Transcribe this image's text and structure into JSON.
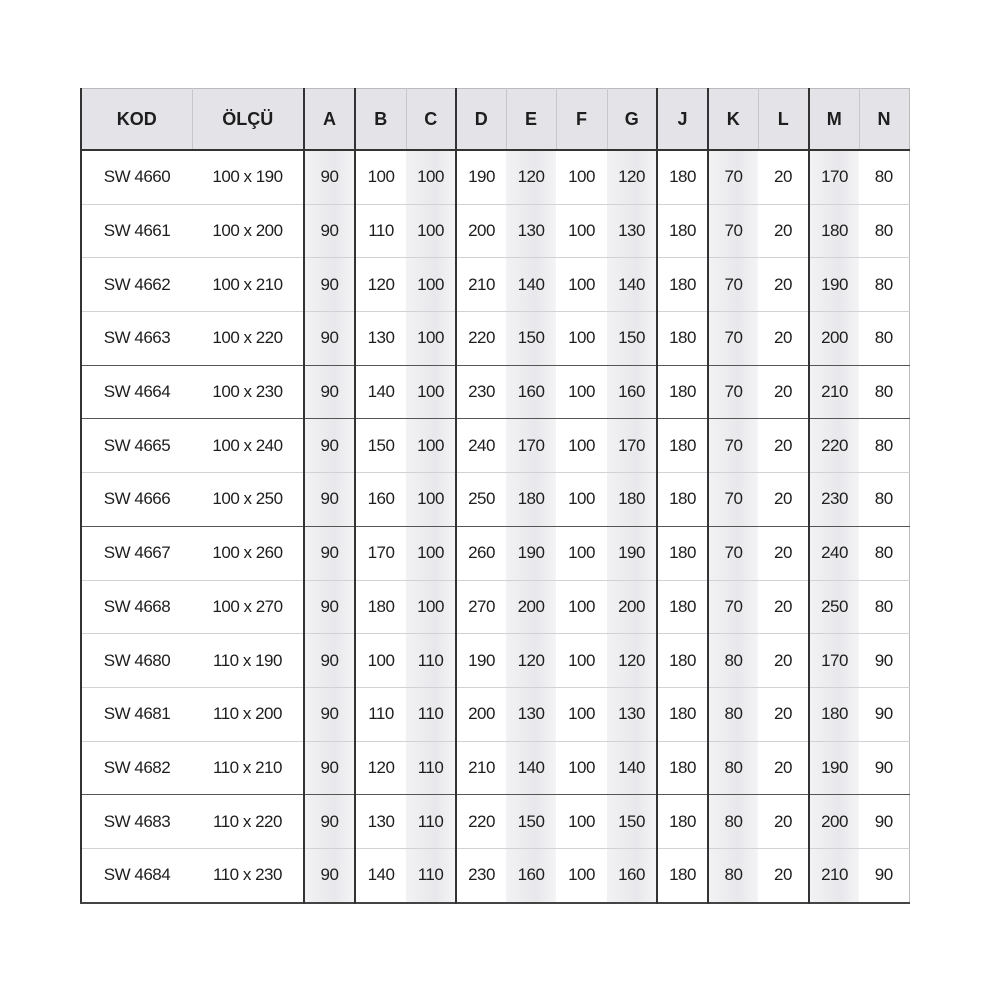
{
  "table": {
    "headers": [
      "KOD",
      "ÖLÇÜ",
      "A",
      "B",
      "C",
      "D",
      "E",
      "F",
      "G",
      "J",
      "K",
      "L",
      "M",
      "N"
    ],
    "rows": [
      [
        "SW 4660",
        "100 x 190",
        "90",
        "100",
        "100",
        "190",
        "120",
        "100",
        "120",
        "180",
        "70",
        "20",
        "170",
        "80"
      ],
      [
        "SW 4661",
        "100 x 200",
        "90",
        "110",
        "100",
        "200",
        "130",
        "100",
        "130",
        "180",
        "70",
        "20",
        "180",
        "80"
      ],
      [
        "SW 4662",
        "100 x 210",
        "90",
        "120",
        "100",
        "210",
        "140",
        "100",
        "140",
        "180",
        "70",
        "20",
        "190",
        "80"
      ],
      [
        "SW 4663",
        "100 x 220",
        "90",
        "130",
        "100",
        "220",
        "150",
        "100",
        "150",
        "180",
        "70",
        "20",
        "200",
        "80"
      ],
      [
        "SW 4664",
        "100 x 230",
        "90",
        "140",
        "100",
        "230",
        "160",
        "100",
        "160",
        "180",
        "70",
        "20",
        "210",
        "80"
      ],
      [
        "SW 4665",
        "100 x 240",
        "90",
        "150",
        "100",
        "240",
        "170",
        "100",
        "170",
        "180",
        "70",
        "20",
        "220",
        "80"
      ],
      [
        "SW 4666",
        "100 x 250",
        "90",
        "160",
        "100",
        "250",
        "180",
        "100",
        "180",
        "180",
        "70",
        "20",
        "230",
        "80"
      ],
      [
        "SW 4667",
        "100 x 260",
        "90",
        "170",
        "100",
        "260",
        "190",
        "100",
        "190",
        "180",
        "70",
        "20",
        "240",
        "80"
      ],
      [
        "SW 4668",
        "100 x 270",
        "90",
        "180",
        "100",
        "270",
        "200",
        "100",
        "200",
        "180",
        "70",
        "20",
        "250",
        "80"
      ],
      [
        "SW 4680",
        "110 x 190",
        "90",
        "100",
        "110",
        "190",
        "120",
        "100",
        "120",
        "180",
        "80",
        "20",
        "170",
        "90"
      ],
      [
        "SW 4681",
        "110 x 200",
        "90",
        "110",
        "110",
        "200",
        "130",
        "100",
        "130",
        "180",
        "80",
        "20",
        "180",
        "90"
      ],
      [
        "SW 4682",
        "110 x 210",
        "90",
        "120",
        "110",
        "210",
        "140",
        "100",
        "140",
        "180",
        "80",
        "20",
        "190",
        "90"
      ],
      [
        "SW 4683",
        "110 x 220",
        "90",
        "130",
        "110",
        "220",
        "150",
        "100",
        "150",
        "180",
        "80",
        "20",
        "200",
        "90"
      ],
      [
        "SW 4684",
        "110 x 230",
        "90",
        "140",
        "110",
        "230",
        "160",
        "100",
        "160",
        "180",
        "80",
        "20",
        "210",
        "90"
      ]
    ]
  }
}
